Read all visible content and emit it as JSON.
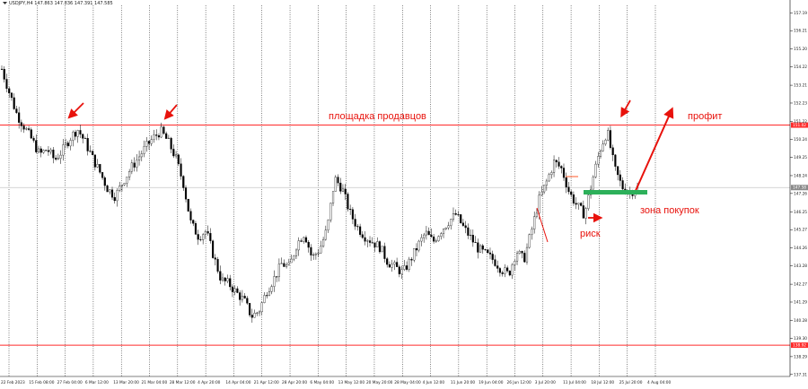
{
  "header": {
    "icon": "triangle-down-icon",
    "text": "USDJPY,H4  147.863 147.836 147.391 147.585"
  },
  "chart_data": {
    "type": "candlestick",
    "symbol": "USDJPY",
    "timeframe": "H4",
    "ylim": [
      137.2,
      157.6
    ],
    "y_ticks": [
      "157.19",
      "156.21",
      "155.20",
      "154.22",
      "153.21",
      "152.23",
      "151.22",
      "150.24",
      "149.25",
      "148.24",
      "147.26",
      "146.25",
      "145.27",
      "144.26",
      "143.28",
      "142.27",
      "141.29",
      "140.28",
      "139.30",
      "138.29",
      "137.31"
    ],
    "x_labels": [
      "22 Feb 2023",
      "15 Feb 08:00",
      "27 Feb 04:00",
      "6 Mar 12:00",
      "13 Mar 20:00",
      "21 Mar 04:00",
      "28 Mar 12:00",
      "4 Apr 20:00",
      "14 Apr 04:00",
      "21 Apr 12:00",
      "28 Apr 20:00",
      "6 May 04:00",
      "13 May 12:00",
      "20 May 20:00",
      "28 May 04:00",
      "4 Jun 12:00",
      "11 Jun 20:00",
      "19 Jun 04:00",
      "26 Jun 12:00",
      "3 Jul 20:00",
      "11 Jul 04:00",
      "18 Jul 12:00",
      "25 Jul 20:00",
      "4 Aug 04:00"
    ],
    "close_series": [
      154.1,
      152.8,
      151.6,
      150.9,
      150.2,
      149.4,
      149.7,
      149.1,
      149.6,
      150.3,
      150.8,
      150.1,
      149.2,
      148.4,
      147.5,
      147.1,
      147.9,
      148.6,
      149.2,
      149.8,
      150.3,
      150.7,
      150.1,
      149.2,
      147.8,
      145.6,
      144.9,
      145.2,
      143.8,
      142.5,
      142.3,
      141.8,
      141.4,
      140.5,
      140.8,
      141.9,
      142.6,
      143.4,
      143.2,
      144.5,
      145.1,
      143.7,
      144.2,
      145.3,
      148.1,
      147.5,
      146.2,
      145.4,
      144.9,
      144.6,
      144.3,
      143.5,
      143.2,
      142.9,
      143.6,
      144.4,
      145.1,
      144.6,
      145.2,
      145.7,
      146.1,
      145.4,
      144.8,
      144.2,
      143.9,
      143.6,
      143.1,
      142.8,
      144.1,
      143.6,
      145.2,
      146.9,
      147.9,
      149.0,
      148.6,
      147.3,
      146.6,
      146.1,
      147.9,
      149.6,
      150.7,
      148.6,
      147.6,
      147.3,
      147.585
    ],
    "current_price": "147.585",
    "levels": [
      {
        "name": "seller-zone",
        "price": 151.02,
        "tag": "151.02",
        "color": "#ff2a2a"
      },
      {
        "name": "lower-line",
        "price": 138.92,
        "tag": "138.92",
        "color": "#ff2a2a"
      },
      {
        "name": "bid-line",
        "price": 147.585,
        "tag": "147.58",
        "color": "#c8c8c8"
      }
    ],
    "annotations": {
      "seller_zone": "площадка продавцов",
      "profit": "профит",
      "buy_zone": "зона покупок",
      "risk": "риск"
    },
    "colors": {
      "candles": "#000000",
      "annotation": "#e8120c",
      "buy_zone": "#2db05a",
      "grid": "#000000"
    }
  }
}
